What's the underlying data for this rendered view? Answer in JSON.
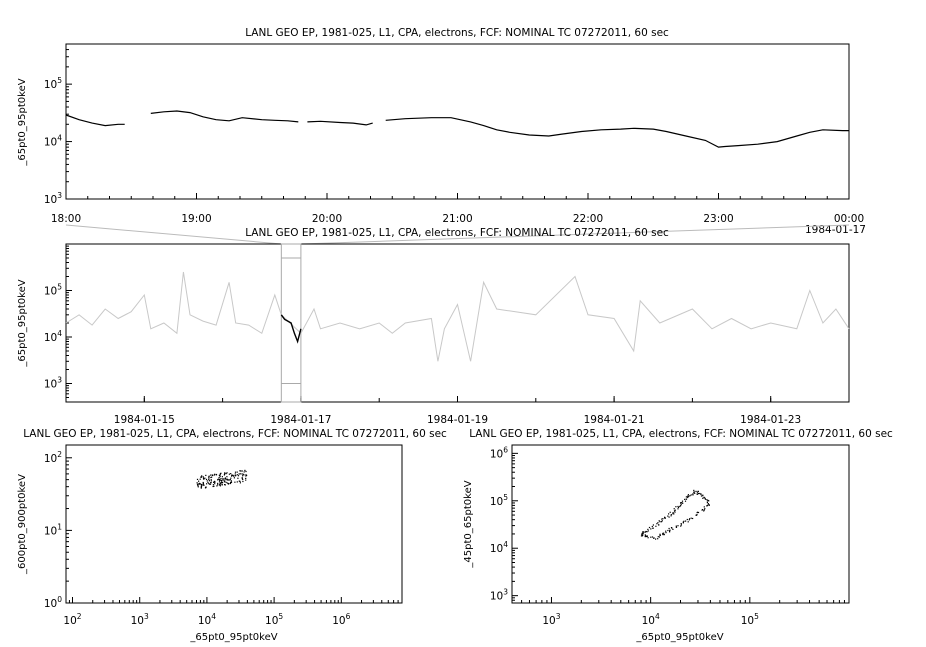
{
  "chart_data": [
    {
      "id": "top",
      "type": "line",
      "title": "LANL GEO EP, 1981-025, L1, CPA, electrons, FCF: NOMINAL TC 07272011, 60 sec",
      "ylabel": "_65pt0_95pt0keV",
      "xlabel": "",
      "yscale": "log",
      "ylim": [
        1000,
        500000
      ],
      "yticks": [
        {
          "b": "10",
          "e": "3",
          "v": 1000
        },
        {
          "b": "10",
          "e": "4",
          "v": 10000
        },
        {
          "b": "10",
          "e": "5",
          "v": 100000
        }
      ],
      "xlim": [
        18,
        24
      ],
      "xticks": [
        {
          "v": 18,
          "label": "18:00"
        },
        {
          "v": 19,
          "label": "19:00"
        },
        {
          "v": 20,
          "label": "20:00"
        },
        {
          "v": 21,
          "label": "21:00"
        },
        {
          "v": 22,
          "label": "22:00"
        },
        {
          "v": 23,
          "label": "23:00"
        },
        {
          "v": 24,
          "label": "00:00"
        }
      ],
      "xnote": "1984-01-17",
      "series": [
        {
          "color": "#000000",
          "points": [
            [
              18.0,
              29000
            ],
            [
              18.1,
              24000
            ],
            [
              18.2,
              21000
            ],
            [
              18.3,
              19000
            ],
            [
              18.4,
              20000
            ],
            [
              18.45,
              20000
            ]
          ]
        },
        {
          "color": "#000000",
          "points": [
            [
              18.65,
              31000
            ],
            [
              18.75,
              33000
            ],
            [
              18.85,
              34000
            ],
            [
              18.95,
              32000
            ],
            [
              19.05,
              27000
            ],
            [
              19.15,
              24000
            ],
            [
              19.25,
              23000
            ],
            [
              19.35,
              26000
            ],
            [
              19.5,
              24000
            ],
            [
              19.6,
              23500
            ],
            [
              19.7,
              23000
            ],
            [
              19.78,
              22000
            ]
          ]
        },
        {
          "color": "#000000",
          "points": [
            [
              19.85,
              22000
            ],
            [
              19.95,
              22500
            ],
            [
              20.1,
              21500
            ],
            [
              20.2,
              21000
            ],
            [
              20.3,
              19500
            ],
            [
              20.35,
              21000
            ]
          ]
        },
        {
          "color": "#000000",
          "points": [
            [
              20.45,
              23500
            ],
            [
              20.6,
              25000
            ],
            [
              20.8,
              26000
            ],
            [
              20.95,
              26000
            ],
            [
              21.1,
              22000
            ],
            [
              21.2,
              19000
            ],
            [
              21.3,
              16000
            ],
            [
              21.4,
              14500
            ],
            [
              21.55,
              13000
            ],
            [
              21.7,
              12500
            ],
            [
              21.8,
              13500
            ],
            [
              21.95,
              15000
            ],
            [
              22.1,
              16000
            ],
            [
              22.25,
              16500
            ],
            [
              22.35,
              17000
            ],
            [
              22.5,
              16500
            ],
            [
              22.6,
              15000
            ],
            [
              22.75,
              12500
            ],
            [
              22.9,
              10500
            ],
            [
              23.0,
              8000
            ],
            [
              23.05,
              8200
            ],
            [
              23.15,
              8500
            ],
            [
              23.3,
              9000
            ],
            [
              23.45,
              10000
            ],
            [
              23.6,
              12500
            ],
            [
              23.7,
              14500
            ],
            [
              23.8,
              16000
            ],
            [
              23.95,
              15500
            ],
            [
              24.0,
              15500
            ]
          ]
        }
      ]
    },
    {
      "id": "middle",
      "type": "line",
      "title": "LANL GEO EP, 1981-025, L1, CPA, electrons, FCF: NOMINAL TC 07272011, 60 sec",
      "ylabel": "_65pt0_95pt0keV",
      "xlabel": "",
      "yscale": "log",
      "ylim": [
        400,
        1000000
      ],
      "yticks": [
        {
          "b": "10",
          "e": "3",
          "v": 1000
        },
        {
          "b": "10",
          "e": "4",
          "v": 10000
        },
        {
          "b": "10",
          "e": "5",
          "v": 100000
        }
      ],
      "xlim": [
        "1984-01-14",
        "1984-01-24"
      ],
      "xticks": [
        {
          "v": "1984-01-15",
          "label": "1984-01-15"
        },
        {
          "v": "1984-01-17",
          "label": "1984-01-17"
        },
        {
          "v": "1984-01-19",
          "label": "1984-01-19"
        },
        {
          "v": "1984-01-21",
          "label": "1984-01-21"
        },
        {
          "v": "1984-01-23",
          "label": "1984-01-23"
        }
      ],
      "highlight": {
        "start": "1984-01-16T18:00",
        "end": "1984-01-17T00:00"
      },
      "series": [
        {
          "color": "#c8c8c8",
          "points": [
            [
              "1984-01-14T00:00",
              20000
            ],
            [
              "1984-01-14T04:00",
              30000
            ],
            [
              "1984-01-14T08:00",
              18000
            ],
            [
              "1984-01-14T12:00",
              40000
            ],
            [
              "1984-01-14T16:00",
              25000
            ],
            [
              "1984-01-14T20:00",
              35000
            ],
            [
              "1984-01-15T00:00",
              80000
            ],
            [
              "1984-01-15T02:00",
              15000
            ],
            [
              "1984-01-15T06:00",
              20000
            ],
            [
              "1984-01-15T10:00",
              12000
            ],
            [
              "1984-01-15T12:00",
              250000
            ],
            [
              "1984-01-15T14:00",
              30000
            ],
            [
              "1984-01-15T18:00",
              22000
            ],
            [
              "1984-01-15T22:00",
              18000
            ],
            [
              "1984-01-16T02:00",
              150000
            ],
            [
              "1984-01-16T04:00",
              20000
            ],
            [
              "1984-01-16T08:00",
              18000
            ],
            [
              "1984-01-16T12:00",
              12000
            ],
            [
              "1984-01-16T16:00",
              80000
            ],
            [
              "1984-01-16T18:00",
              30000
            ],
            [
              "1984-01-17T00:00",
              12000
            ],
            [
              "1984-01-17T04:00",
              40000
            ],
            [
              "1984-01-17T06:00",
              15000
            ],
            [
              "1984-01-17T12:00",
              20000
            ],
            [
              "1984-01-17T18:00",
              15000
            ],
            [
              "1984-01-18T00:00",
              20000
            ],
            [
              "1984-01-18T04:00",
              12000
            ],
            [
              "1984-01-18T08:00",
              20000
            ],
            [
              "1984-01-18T16:00",
              25000
            ],
            [
              "1984-01-18T18:00",
              3000
            ],
            [
              "1984-01-18T20:00",
              15000
            ],
            [
              "1984-01-19T00:00",
              50000
            ],
            [
              "1984-01-19T04:00",
              3000
            ],
            [
              "1984-01-19T08:00",
              150000
            ],
            [
              "1984-01-19T12:00",
              40000
            ],
            [
              "1984-01-20T00:00",
              30000
            ],
            [
              "1984-01-20T12:00",
              200000
            ],
            [
              "1984-01-20T16:00",
              30000
            ],
            [
              "1984-01-21T00:00",
              25000
            ],
            [
              "1984-01-21T06:00",
              5000
            ],
            [
              "1984-01-21T08:00",
              60000
            ],
            [
              "1984-01-21T14:00",
              20000
            ],
            [
              "1984-01-22T00:00",
              40000
            ],
            [
              "1984-01-22T06:00",
              15000
            ],
            [
              "1984-01-22T12:00",
              25000
            ],
            [
              "1984-01-22T18:00",
              15000
            ],
            [
              "1984-01-23T00:00",
              20000
            ],
            [
              "1984-01-23T08:00",
              15000
            ],
            [
              "1984-01-23T12:00",
              100000
            ],
            [
              "1984-01-23T16:00",
              20000
            ],
            [
              "1984-01-23T20:00",
              40000
            ],
            [
              "1984-01-24T00:00",
              15000
            ]
          ]
        },
        {
          "color": "#000000",
          "points": [
            [
              "1984-01-16T18:00",
              30000
            ],
            [
              "1984-01-16T19:00",
              24000
            ],
            [
              "1984-01-16T20:00",
              22000
            ],
            [
              "1984-01-16T21:00",
              20000
            ],
            [
              "1984-01-16T22:00",
              12000
            ],
            [
              "1984-01-16T23:00",
              8000
            ],
            [
              "1984-01-17T00:00",
              15000
            ]
          ]
        }
      ]
    },
    {
      "id": "bottom-left",
      "type": "scatter",
      "title": "LANL GEO EP, 1981-025, L1, CPA, electrons, FCF: NOMINAL TC 07272011, 60 sec",
      "xlabel": "_65pt0_95pt0keV",
      "ylabel": "_600pt0_900pt0keV",
      "xscale": "log",
      "yscale": "log",
      "xlim": [
        80,
        8000000
      ],
      "ylim": [
        1,
        150
      ],
      "xticks": [
        {
          "b": "10",
          "e": "2",
          "v": 100
        },
        {
          "b": "10",
          "e": "3",
          "v": 1000
        },
        {
          "b": "10",
          "e": "4",
          "v": 10000
        },
        {
          "b": "10",
          "e": "5",
          "v": 100000
        },
        {
          "b": "10",
          "e": "6",
          "v": 1000000
        }
      ],
      "yticks": [
        {
          "b": "10",
          "e": "0",
          "v": 1
        },
        {
          "b": "10",
          "e": "1",
          "v": 10
        },
        {
          "b": "10",
          "e": "2",
          "v": 100
        }
      ],
      "cluster": {
        "x_range": [
          7000,
          40000
        ],
        "y_range": [
          38,
          70
        ],
        "count": 180
      }
    },
    {
      "id": "bottom-right",
      "type": "scatter",
      "title": "LANL GEO EP, 1981-025, L1, CPA, electrons, FCF: NOMINAL TC 07272011, 60 sec",
      "xlabel": "_65pt0_95pt0keV",
      "ylabel": "_45pt0_65pt0keV",
      "xscale": "log",
      "yscale": "log",
      "xlim": [
        400,
        1000000
      ],
      "ylim": [
        700,
        1500000
      ],
      "xticks": [
        {
          "b": "10",
          "e": "3",
          "v": 1000
        },
        {
          "b": "10",
          "e": "4",
          "v": 10000
        },
        {
          "b": "10",
          "e": "5",
          "v": 100000
        }
      ],
      "yticks": [
        {
          "b": "10",
          "e": "3",
          "v": 1000
        },
        {
          "b": "10",
          "e": "4",
          "v": 10000
        },
        {
          "b": "10",
          "e": "5",
          "v": 100000
        },
        {
          "b": "10",
          "e": "6",
          "v": 1000000
        }
      ],
      "loop": [
        [
          8000,
          20000
        ],
        [
          9000,
          18000
        ],
        [
          11000,
          17000
        ],
        [
          13000,
          20000
        ],
        [
          15000,
          25000
        ],
        [
          18000,
          30000
        ],
        [
          22000,
          38000
        ],
        [
          28000,
          50000
        ],
        [
          35000,
          70000
        ],
        [
          38000,
          90000
        ],
        [
          35000,
          120000
        ],
        [
          30000,
          150000
        ],
        [
          28000,
          160000
        ],
        [
          25000,
          140000
        ],
        [
          22000,
          110000
        ],
        [
          20000,
          90000
        ],
        [
          18000,
          70000
        ],
        [
          16000,
          55000
        ],
        [
          14000,
          45000
        ],
        [
          12000,
          35000
        ],
        [
          10000,
          28000
        ],
        [
          8500,
          22000
        ],
        [
          8000,
          20000
        ]
      ]
    }
  ]
}
